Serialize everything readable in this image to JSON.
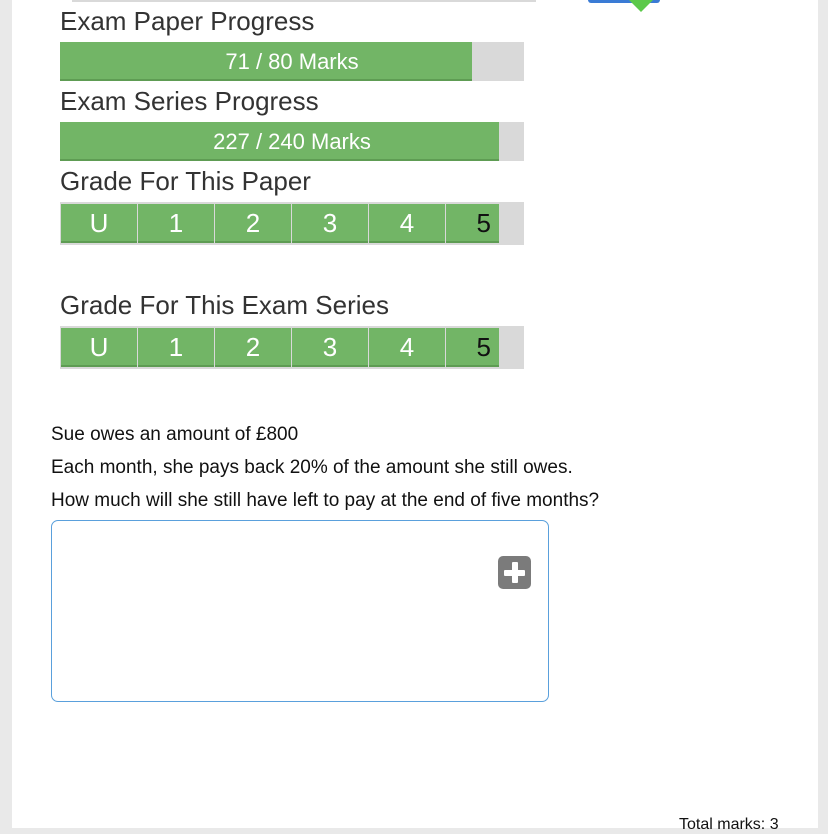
{
  "progress": {
    "paper": {
      "label": "Exam Paper Progress",
      "text": "71 / 80 Marks",
      "value": 71,
      "max": 80
    },
    "series": {
      "label": "Exam Series Progress",
      "text": "227 / 240 Marks",
      "value": 227,
      "max": 240
    }
  },
  "grades": {
    "paper": {
      "label": "Grade For This Paper",
      "levels": [
        "U",
        "1",
        "2",
        "3",
        "4",
        "5"
      ],
      "current": "5"
    },
    "series": {
      "label": "Grade For This Exam Series",
      "levels": [
        "U",
        "1",
        "2",
        "3",
        "4",
        "5"
      ],
      "current": "5"
    }
  },
  "question": {
    "lines": [
      "Sue owes an amount of £800",
      "Each month, she pays back 20% of the amount she still owes.",
      "How much will she still have left to pay at the end of five months?"
    ],
    "answer_value": "",
    "total_marks": "Total marks: 3"
  },
  "colors": {
    "fill": "#72b566",
    "track": "#d9d9d9",
    "input_border": "#5aa0dc"
  }
}
